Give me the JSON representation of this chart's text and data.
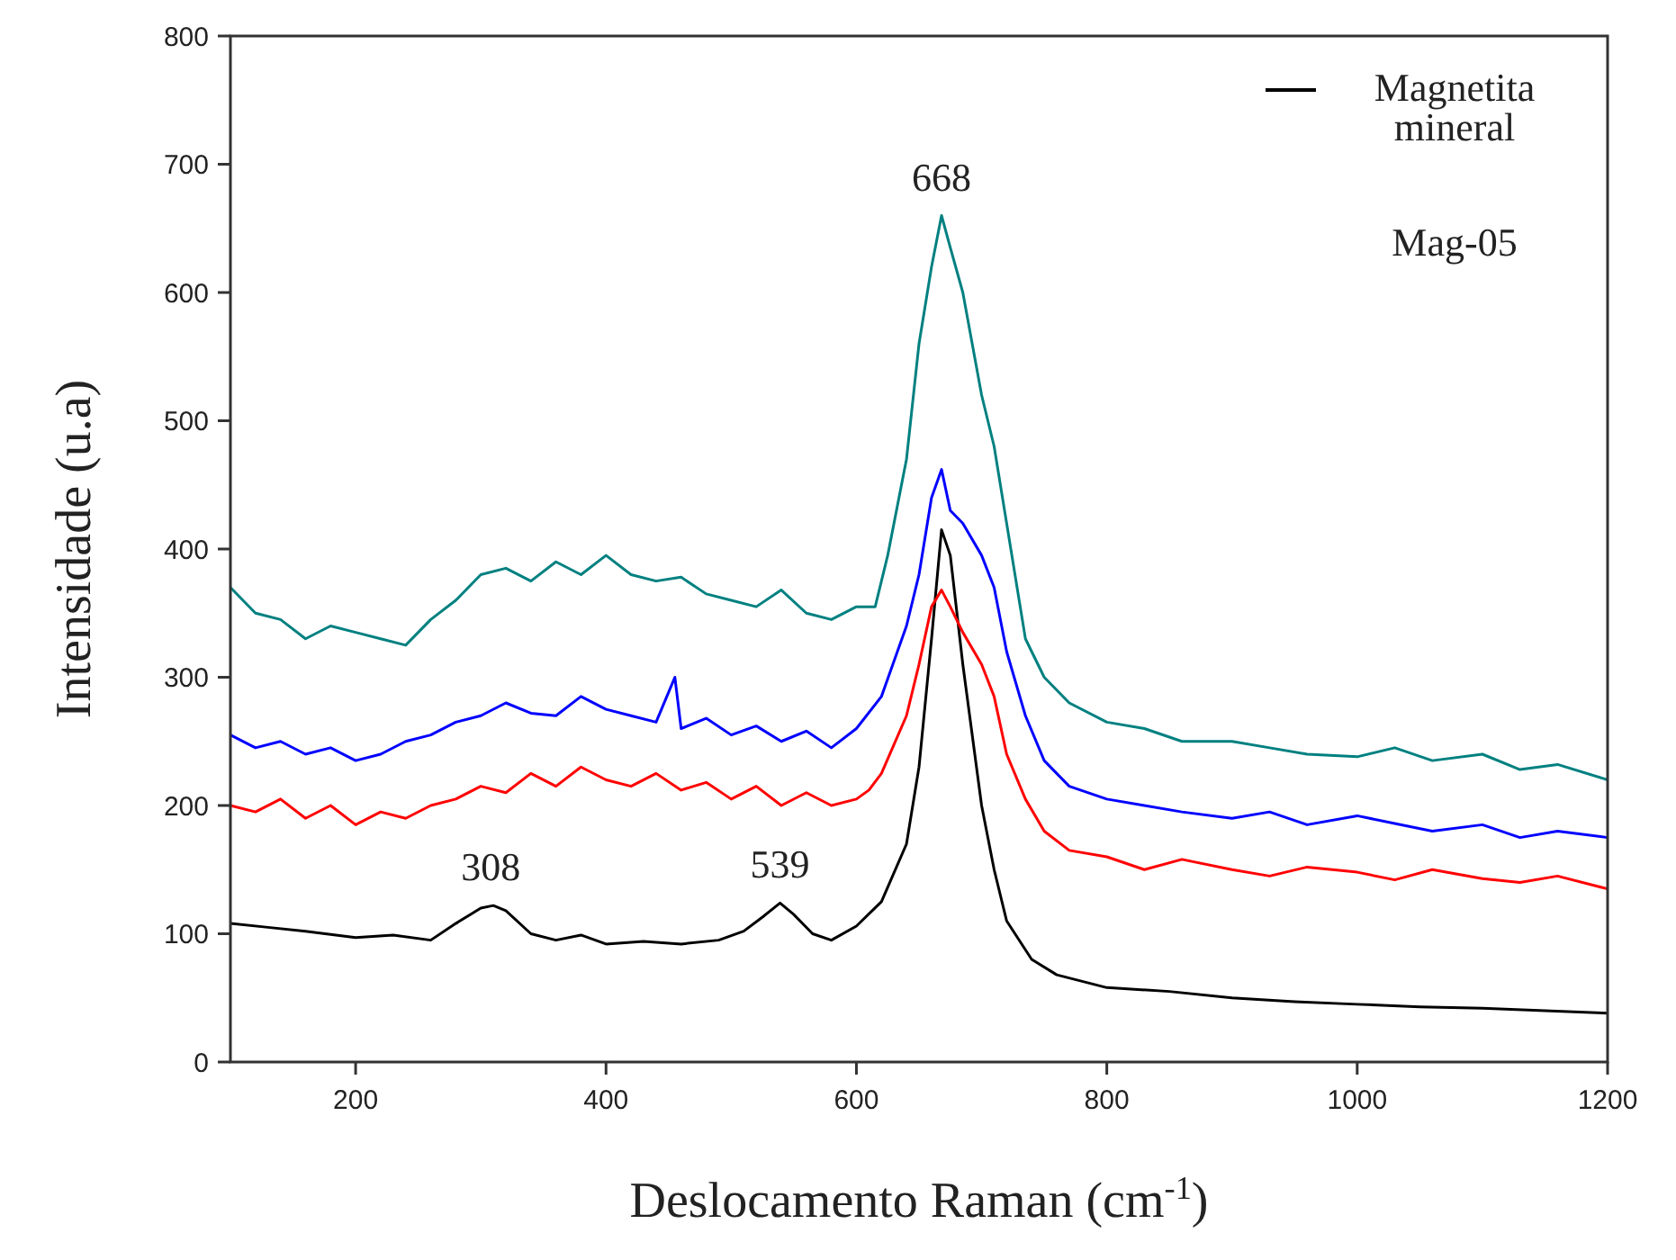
{
  "chart_data": {
    "type": "line",
    "xlabel": "Deslocamento Raman (cm$^{-1}$)",
    "ylabel": "Intensidade (u.a)",
    "xlim": [
      100,
      1200
    ],
    "ylim": [
      0,
      800
    ],
    "xticks": [
      200,
      400,
      600,
      800,
      1000,
      1200
    ],
    "yticks": [
      0,
      100,
      200,
      300,
      400,
      500,
      600,
      700,
      800
    ],
    "grid": false,
    "legend": "top right",
    "marker": "none",
    "line_style": "solid",
    "annotations": [
      {
        "text": "308",
        "x": 308,
        "y": 122
      },
      {
        "text": "539",
        "x": 539,
        "y": 124
      },
      {
        "text": "668",
        "x": 668,
        "y": 660
      },
      "Mag-05"
    ],
    "series": [
      {
        "name": "Magnetita mineral",
        "color": "#000000",
        "x": [
          100,
          130,
          160,
          200,
          230,
          260,
          280,
          300,
          310,
          320,
          340,
          360,
          380,
          400,
          430,
          460,
          490,
          510,
          525,
          539,
          550,
          565,
          580,
          600,
          620,
          640,
          650,
          660,
          668,
          675,
          685,
          700,
          710,
          720,
          740,
          760,
          800,
          850,
          900,
          950,
          1000,
          1050,
          1100,
          1150,
          1200
        ],
        "values": [
          108,
          105,
          102,
          97,
          99,
          95,
          108,
          120,
          122,
          118,
          100,
          95,
          99,
          92,
          94,
          92,
          95,
          102,
          113,
          124,
          115,
          100,
          95,
          106,
          125,
          170,
          230,
          330,
          415,
          395,
          310,
          200,
          150,
          110,
          80,
          68,
          58,
          55,
          50,
          47,
          45,
          43,
          42,
          40,
          38
        ]
      },
      {
        "color": "#ff0000",
        "x": [
          100,
          120,
          140,
          160,
          180,
          200,
          220,
          240,
          260,
          280,
          300,
          320,
          340,
          360,
          380,
          400,
          420,
          440,
          460,
          480,
          500,
          520,
          540,
          560,
          580,
          600,
          610,
          620,
          640,
          650,
          660,
          668,
          675,
          685,
          700,
          710,
          720,
          735,
          750,
          770,
          800,
          830,
          860,
          900,
          930,
          960,
          1000,
          1030,
          1060,
          1100,
          1130,
          1160,
          1200
        ],
        "values": [
          200,
          195,
          205,
          190,
          200,
          185,
          195,
          190,
          200,
          205,
          215,
          210,
          225,
          215,
          230,
          220,
          215,
          225,
          212,
          218,
          205,
          215,
          200,
          210,
          200,
          205,
          212,
          225,
          270,
          310,
          355,
          368,
          355,
          335,
          310,
          285,
          240,
          205,
          180,
          165,
          160,
          150,
          158,
          150,
          145,
          152,
          148,
          142,
          150,
          143,
          140,
          145,
          135
        ]
      },
      {
        "color": "#0000ff",
        "x": [
          100,
          120,
          140,
          160,
          180,
          200,
          220,
          240,
          260,
          280,
          300,
          320,
          340,
          360,
          380,
          400,
          420,
          440,
          455,
          460,
          480,
          500,
          520,
          540,
          560,
          580,
          600,
          620,
          640,
          650,
          660,
          668,
          675,
          685,
          700,
          710,
          720,
          735,
          750,
          770,
          800,
          830,
          860,
          900,
          930,
          960,
          1000,
          1030,
          1060,
          1100,
          1130,
          1160,
          1200
        ],
        "values": [
          255,
          245,
          250,
          240,
          245,
          235,
          240,
          250,
          255,
          265,
          270,
          280,
          272,
          270,
          285,
          275,
          270,
          265,
          300,
          260,
          268,
          255,
          262,
          250,
          258,
          245,
          260,
          285,
          340,
          380,
          440,
          462,
          430,
          420,
          395,
          370,
          320,
          270,
          235,
          215,
          205,
          200,
          195,
          190,
          195,
          185,
          192,
          186,
          180,
          185,
          175,
          180,
          175
        ]
      },
      {
        "color": "#008080",
        "x": [
          100,
          120,
          140,
          160,
          180,
          200,
          220,
          240,
          260,
          280,
          300,
          320,
          340,
          360,
          380,
          400,
          420,
          440,
          460,
          480,
          500,
          520,
          540,
          560,
          580,
          600,
          615,
          625,
          640,
          650,
          660,
          668,
          675,
          685,
          700,
          710,
          720,
          735,
          750,
          770,
          800,
          830,
          860,
          900,
          930,
          960,
          1000,
          1030,
          1060,
          1100,
          1130,
          1160,
          1200
        ],
        "values": [
          370,
          350,
          345,
          330,
          340,
          335,
          330,
          325,
          345,
          360,
          380,
          385,
          375,
          390,
          380,
          395,
          380,
          375,
          378,
          365,
          360,
          355,
          368,
          350,
          345,
          355,
          355,
          395,
          470,
          560,
          620,
          660,
          635,
          600,
          520,
          480,
          420,
          330,
          300,
          280,
          265,
          260,
          250,
          250,
          245,
          240,
          238,
          245,
          235,
          240,
          228,
          232,
          220
        ]
      }
    ]
  }
}
